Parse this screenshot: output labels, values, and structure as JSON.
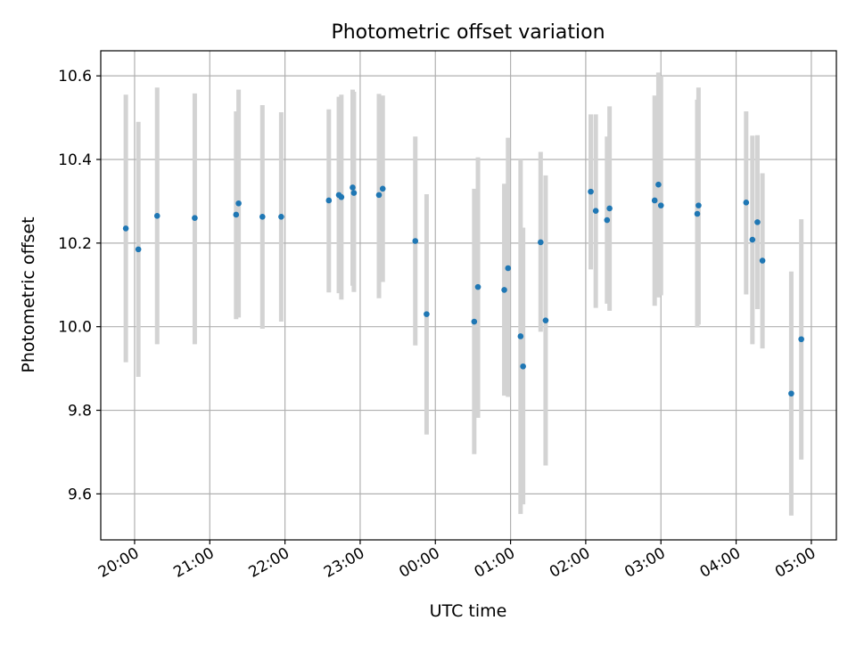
{
  "chart_data": {
    "type": "scatter",
    "title": "Photometric offset variation",
    "xlabel": "UTC time",
    "ylabel": "Photometric offset",
    "x_unit": "UTC time (HH:MM, spanning midnight)",
    "xlim": [
      "19:33",
      "05:20"
    ],
    "ylim": [
      9.49,
      10.66
    ],
    "grid": true,
    "x_ticks": [
      "20:00",
      "21:00",
      "22:00",
      "23:00",
      "00:00",
      "01:00",
      "02:00",
      "03:00",
      "04:00",
      "05:00"
    ],
    "y_ticks": [
      "9.6",
      "9.8",
      "10.0",
      "10.2",
      "10.4",
      "10.6"
    ],
    "point_color": "#1f77b4",
    "errorbar_color": "#d3d3d3",
    "points": [
      {
        "x": "19:53",
        "y": 10.235,
        "lo": 9.915,
        "hi": 10.555
      },
      {
        "x": "20:03",
        "y": 10.185,
        "lo": 9.88,
        "hi": 10.49
      },
      {
        "x": "20:18",
        "y": 10.265,
        "lo": 9.958,
        "hi": 10.572
      },
      {
        "x": "20:48",
        "y": 10.26,
        "lo": 9.958,
        "hi": 10.558
      },
      {
        "x": "21:21",
        "y": 10.268,
        "lo": 10.018,
        "hi": 10.515
      },
      {
        "x": "21:23",
        "y": 10.295,
        "lo": 10.022,
        "hi": 10.567
      },
      {
        "x": "21:42",
        "y": 10.263,
        "lo": 9.995,
        "hi": 10.53
      },
      {
        "x": "21:57",
        "y": 10.263,
        "lo": 10.012,
        "hi": 10.513
      },
      {
        "x": "22:35",
        "y": 10.302,
        "lo": 10.082,
        "hi": 10.52
      },
      {
        "x": "22:43",
        "y": 10.315,
        "lo": 10.08,
        "hi": 10.55
      },
      {
        "x": "22:45",
        "y": 10.31,
        "lo": 10.065,
        "hi": 10.555
      },
      {
        "x": "22:54",
        "y": 10.333,
        "lo": 10.098,
        "hi": 10.567
      },
      {
        "x": "22:55",
        "y": 10.32,
        "lo": 10.083,
        "hi": 10.562
      },
      {
        "x": "23:15",
        "y": 10.315,
        "lo": 10.068,
        "hi": 10.557
      },
      {
        "x": "23:18",
        "y": 10.33,
        "lo": 10.107,
        "hi": 10.553
      },
      {
        "x": "23:44",
        "y": 10.205,
        "lo": 9.955,
        "hi": 10.455
      },
      {
        "x": "23:53",
        "y": 10.03,
        "lo": 9.742,
        "hi": 10.317
      },
      {
        "x": "00:31",
        "y": 10.012,
        "lo": 9.695,
        "hi": 10.33
      },
      {
        "x": "00:34",
        "y": 10.095,
        "lo": 9.782,
        "hi": 10.405
      },
      {
        "x": "00:55",
        "y": 10.088,
        "lo": 9.835,
        "hi": 10.342
      },
      {
        "x": "00:58",
        "y": 10.14,
        "lo": 9.832,
        "hi": 10.452
      },
      {
        "x": "01:08",
        "y": 9.977,
        "lo": 9.552,
        "hi": 10.4
      },
      {
        "x": "01:10",
        "y": 9.905,
        "lo": 9.575,
        "hi": 10.237
      },
      {
        "x": "01:24",
        "y": 10.202,
        "lo": 9.988,
        "hi": 10.418
      },
      {
        "x": "01:28",
        "y": 10.015,
        "lo": 9.668,
        "hi": 10.362
      },
      {
        "x": "02:04",
        "y": 10.323,
        "lo": 10.137,
        "hi": 10.508
      },
      {
        "x": "02:08",
        "y": 10.277,
        "lo": 10.045,
        "hi": 10.508
      },
      {
        "x": "02:17",
        "y": 10.255,
        "lo": 10.055,
        "hi": 10.455
      },
      {
        "x": "02:19",
        "y": 10.283,
        "lo": 10.038,
        "hi": 10.527
      },
      {
        "x": "02:55",
        "y": 10.302,
        "lo": 10.05,
        "hi": 10.553
      },
      {
        "x": "02:58",
        "y": 10.34,
        "lo": 10.07,
        "hi": 10.608
      },
      {
        "x": "03:00",
        "y": 10.29,
        "lo": 10.075,
        "hi": 10.6
      },
      {
        "x": "03:29",
        "y": 10.27,
        "lo": 9.998,
        "hi": 10.543
      },
      {
        "x": "03:30",
        "y": 10.29,
        "lo": 10.005,
        "hi": 10.572
      },
      {
        "x": "04:08",
        "y": 10.297,
        "lo": 10.077,
        "hi": 10.515
      },
      {
        "x": "04:13",
        "y": 10.208,
        "lo": 9.958,
        "hi": 10.457
      },
      {
        "x": "04:17",
        "y": 10.25,
        "lo": 10.042,
        "hi": 10.458
      },
      {
        "x": "04:21",
        "y": 10.158,
        "lo": 9.948,
        "hi": 10.367
      },
      {
        "x": "04:44",
        "y": 9.84,
        "lo": 9.548,
        "hi": 10.132
      },
      {
        "x": "04:52",
        "y": 9.97,
        "lo": 9.682,
        "hi": 10.257
      }
    ]
  }
}
